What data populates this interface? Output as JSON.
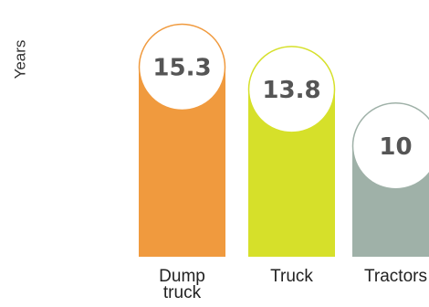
{
  "chart_data": {
    "type": "bar",
    "title": "",
    "xlabel": "",
    "ylabel": "Years",
    "categories": [
      "Dump truck",
      "Truck",
      "Tractors"
    ],
    "values": [
      15.3,
      13.8,
      10
    ],
    "value_labels": [
      "15.3",
      "13.8",
      "10"
    ],
    "colors": [
      "#f09a3e",
      "#d6e02a",
      "#9fb1a8"
    ],
    "grid": false,
    "legend": "none"
  }
}
